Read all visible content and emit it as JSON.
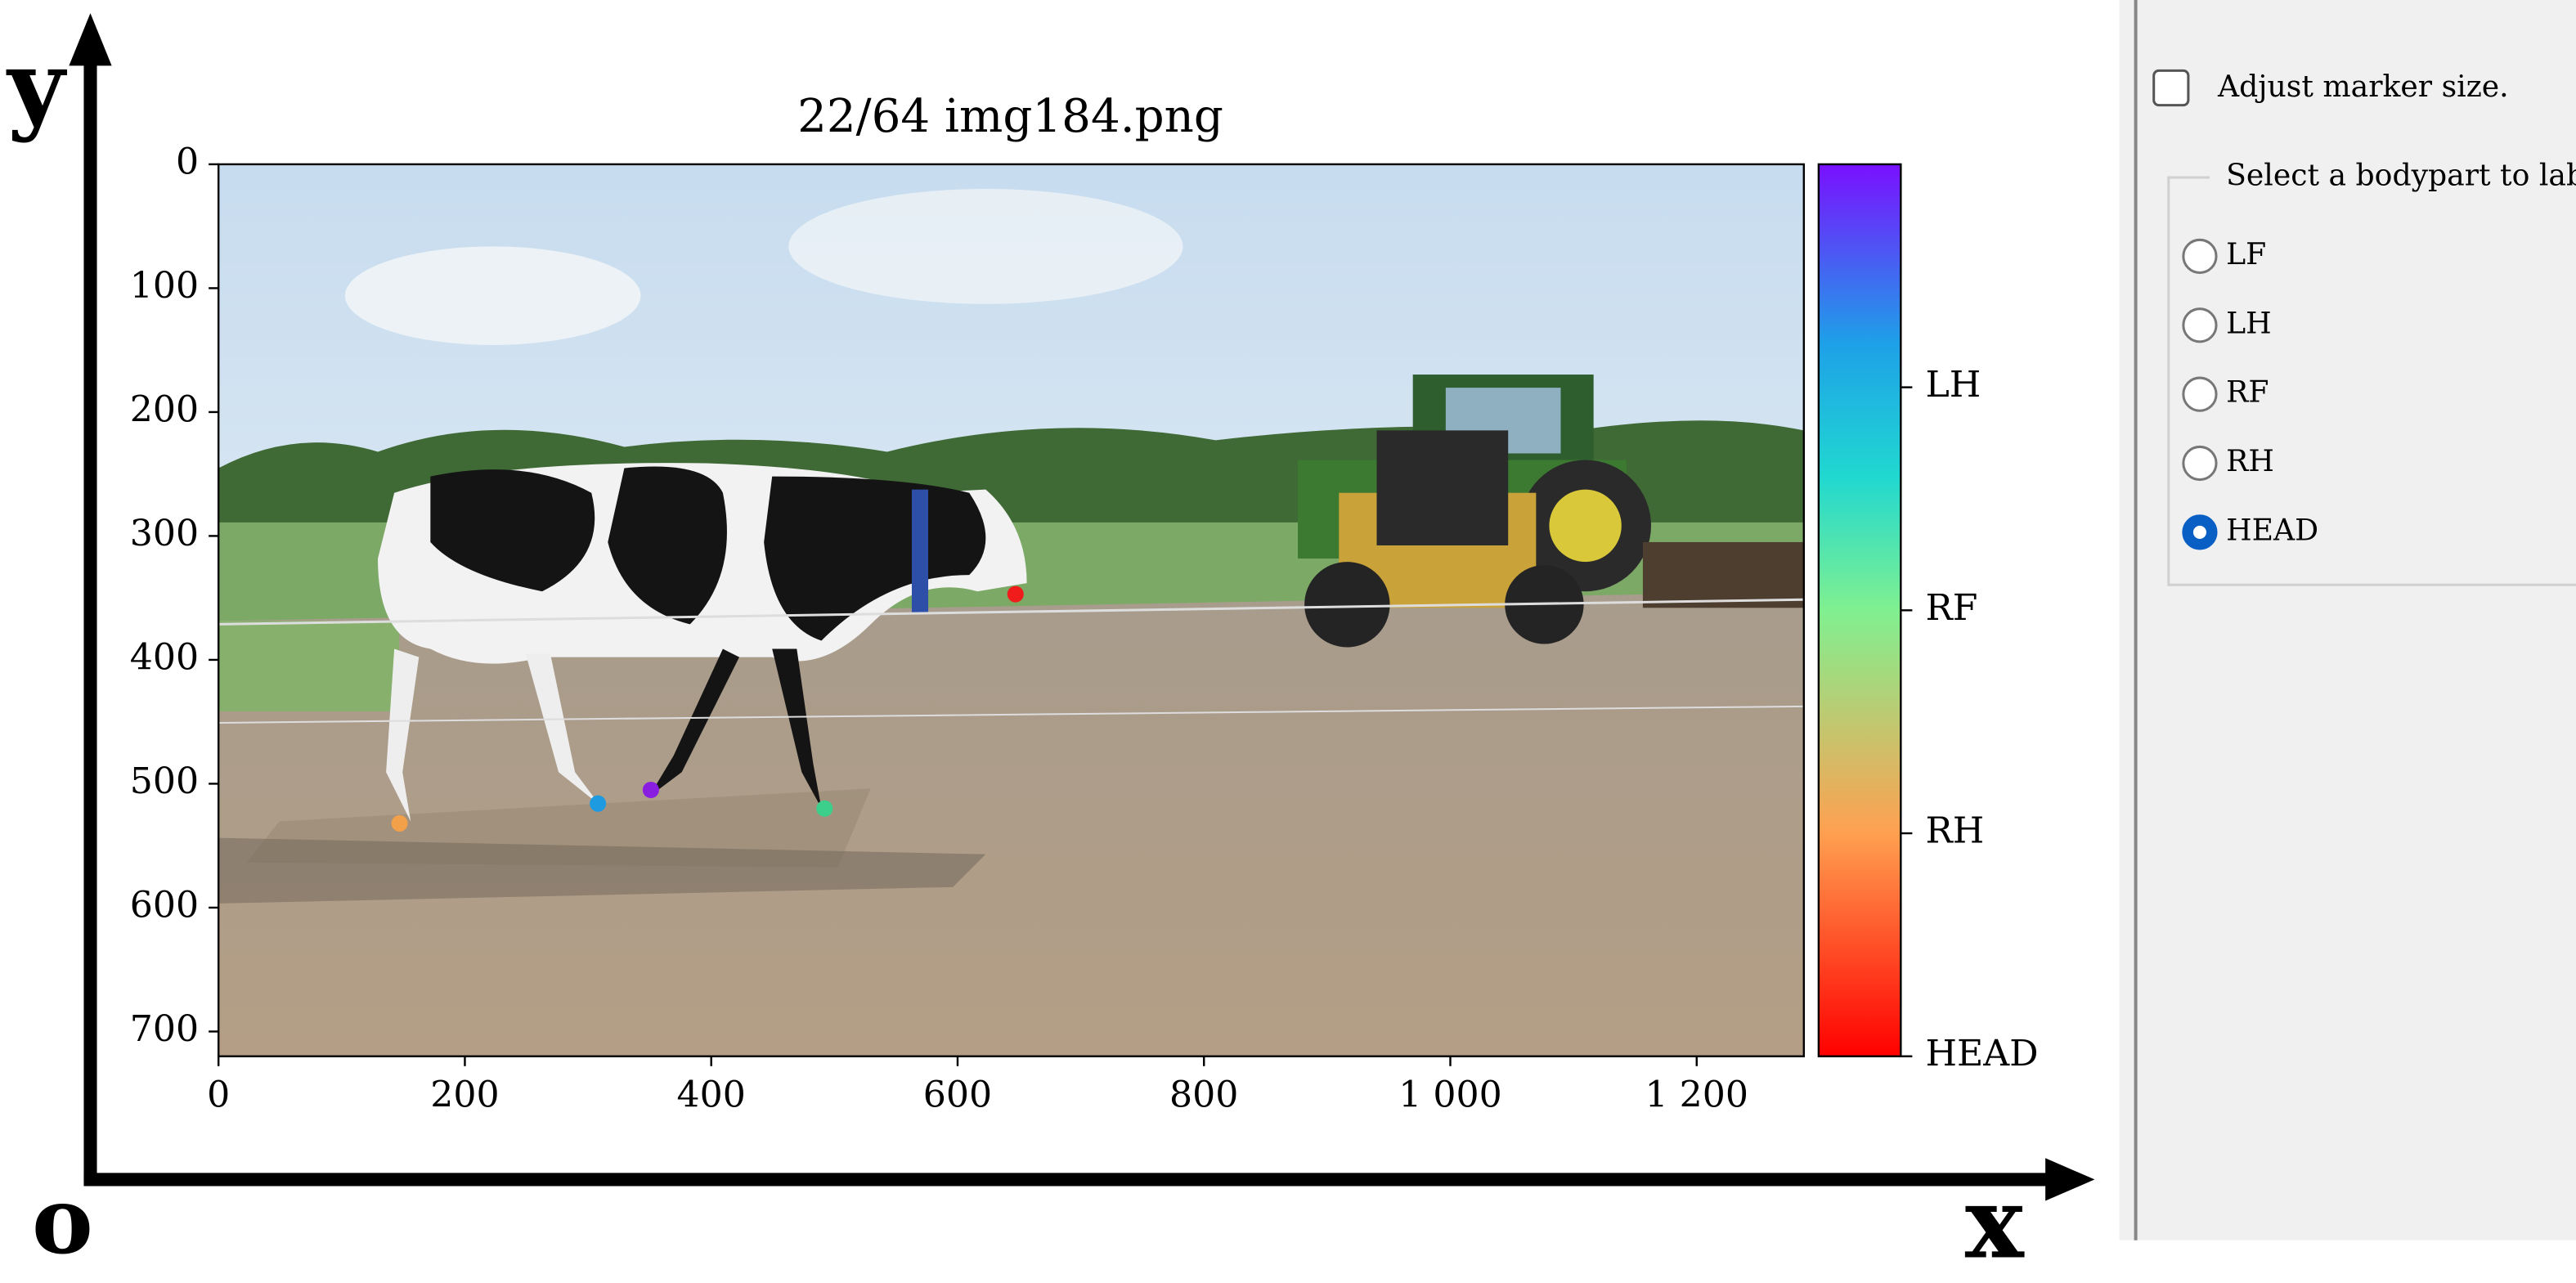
{
  "plot": {
    "title": "22/64 img184.png",
    "xlim": [
      0,
      1287
    ],
    "ylim": [
      720,
      0
    ],
    "xticks": [
      0,
      200,
      400,
      600,
      800,
      {
        "value": 1000,
        "label": "1 000"
      },
      {
        "value": 1200,
        "label": "1 200"
      }
    ],
    "yticks": [
      0,
      100,
      200,
      300,
      400,
      500,
      600,
      700
    ],
    "colorbar": {
      "lim": [
        0,
        4
      ],
      "ticks": [
        {
          "value": 1,
          "label": "LH"
        },
        {
          "value": 2,
          "label": "RF"
        },
        {
          "value": 3,
          "label": "RH"
        },
        {
          "value": 4,
          "label": "HEAD"
        }
      ]
    },
    "keypoints": {
      "x": [
        351,
        308,
        492,
        147,
        647
      ],
      "y": [
        505,
        516,
        520,
        532,
        347
      ],
      "colors": [
        "#8a1ee0",
        "#1e9be0",
        "#3ccf8c",
        "#f2a04a",
        "#f01c1c"
      ]
    }
  },
  "annotations": {
    "y_axis": "y",
    "x_axis": "x",
    "origin": "o"
  },
  "panel": {
    "checkbox": {
      "label": "Adjust marker size.",
      "checked": false
    },
    "group_title": "Select a bodypart to label",
    "options": [
      "LF",
      "LH",
      "RF",
      "RH",
      "HEAD"
    ],
    "selected": 4
  }
}
